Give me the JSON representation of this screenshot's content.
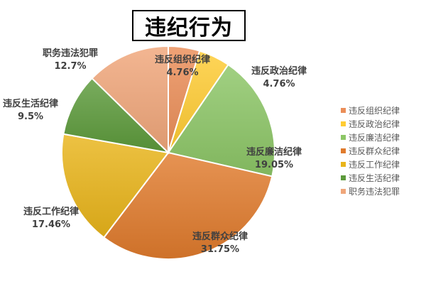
{
  "chart_data": {
    "type": "pie",
    "title": "违纪行为",
    "legend_position": "right",
    "slices": [
      {
        "label": "违反组织纪律",
        "value": 4.76,
        "display": "4.76%",
        "color": "#EB8E58"
      },
      {
        "label": "违反政治纪律",
        "value": 4.76,
        "display": "4.76%",
        "color": "#FFCC33"
      },
      {
        "label": "违反廉洁纪律",
        "value": 19.05,
        "display": "19.05%",
        "color": "#8CC666"
      },
      {
        "label": "违反群众纪律",
        "value": 31.75,
        "display": "31.75%",
        "color": "#E07B2D"
      },
      {
        "label": "违反工作纪律",
        "value": 17.46,
        "display": "17.46%",
        "color": "#E9B41A"
      },
      {
        "label": "违反生活纪律",
        "value": 9.5,
        "display": "9.5%",
        "color": "#5C9A3B"
      },
      {
        "label": "职务违法犯罪",
        "value": 12.7,
        "display": "12.7%",
        "color": "#F0A67A"
      }
    ]
  }
}
